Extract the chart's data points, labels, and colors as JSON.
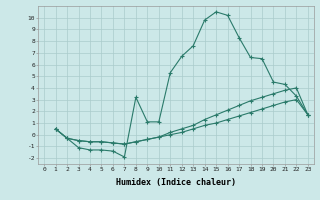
{
  "xlabel": "Humidex (Indice chaleur)",
  "ylabel": "",
  "xlim": [
    -0.5,
    23.5
  ],
  "ylim": [
    -2.5,
    11
  ],
  "background_color": "#cce8e8",
  "grid_color": "#aacccc",
  "line_color": "#2a7a6a",
  "line1_x": [
    1,
    2,
    3,
    4,
    5,
    6,
    7,
    8,
    9,
    10,
    11,
    12,
    13,
    14,
    15,
    16,
    17,
    18,
    19,
    20,
    21,
    22,
    23
  ],
  "line1_y": [
    0.5,
    -0.3,
    -1.1,
    -1.3,
    -1.3,
    -1.4,
    -1.9,
    3.2,
    1.1,
    1.1,
    5.3,
    6.7,
    7.6,
    9.8,
    10.5,
    10.2,
    8.3,
    6.6,
    6.5,
    4.5,
    4.3,
    3.3,
    1.7
  ],
  "line2_x": [
    1,
    2,
    3,
    4,
    5,
    6,
    7,
    8,
    9,
    10,
    11,
    12,
    13,
    14,
    15,
    16,
    17,
    18,
    19,
    20,
    21,
    22,
    23
  ],
  "line2_y": [
    0.5,
    -0.3,
    -0.5,
    -0.6,
    -0.6,
    -0.7,
    -0.8,
    -0.6,
    -0.4,
    -0.2,
    0.2,
    0.5,
    0.8,
    1.3,
    1.7,
    2.1,
    2.5,
    2.9,
    3.2,
    3.5,
    3.8,
    4.0,
    1.7
  ],
  "line3_x": [
    1,
    2,
    3,
    4,
    5,
    6,
    7,
    8,
    9,
    10,
    11,
    12,
    13,
    14,
    15,
    16,
    17,
    18,
    19,
    20,
    21,
    22,
    23
  ],
  "line3_y": [
    0.5,
    -0.3,
    -0.5,
    -0.6,
    -0.6,
    -0.7,
    -0.8,
    -0.6,
    -0.4,
    -0.2,
    0.0,
    0.2,
    0.5,
    0.8,
    1.0,
    1.3,
    1.6,
    1.9,
    2.2,
    2.5,
    2.8,
    3.0,
    1.7
  ],
  "xticks": [
    0,
    1,
    2,
    3,
    4,
    5,
    6,
    7,
    8,
    9,
    10,
    11,
    12,
    13,
    14,
    15,
    16,
    17,
    18,
    19,
    20,
    21,
    22,
    23
  ],
  "yticks": [
    -2,
    -1,
    0,
    1,
    2,
    3,
    4,
    5,
    6,
    7,
    8,
    9,
    10
  ],
  "tick_fontsize": 4.5,
  "xlabel_fontsize": 6.0,
  "marker": "+",
  "markersize": 3,
  "linewidth": 0.8
}
